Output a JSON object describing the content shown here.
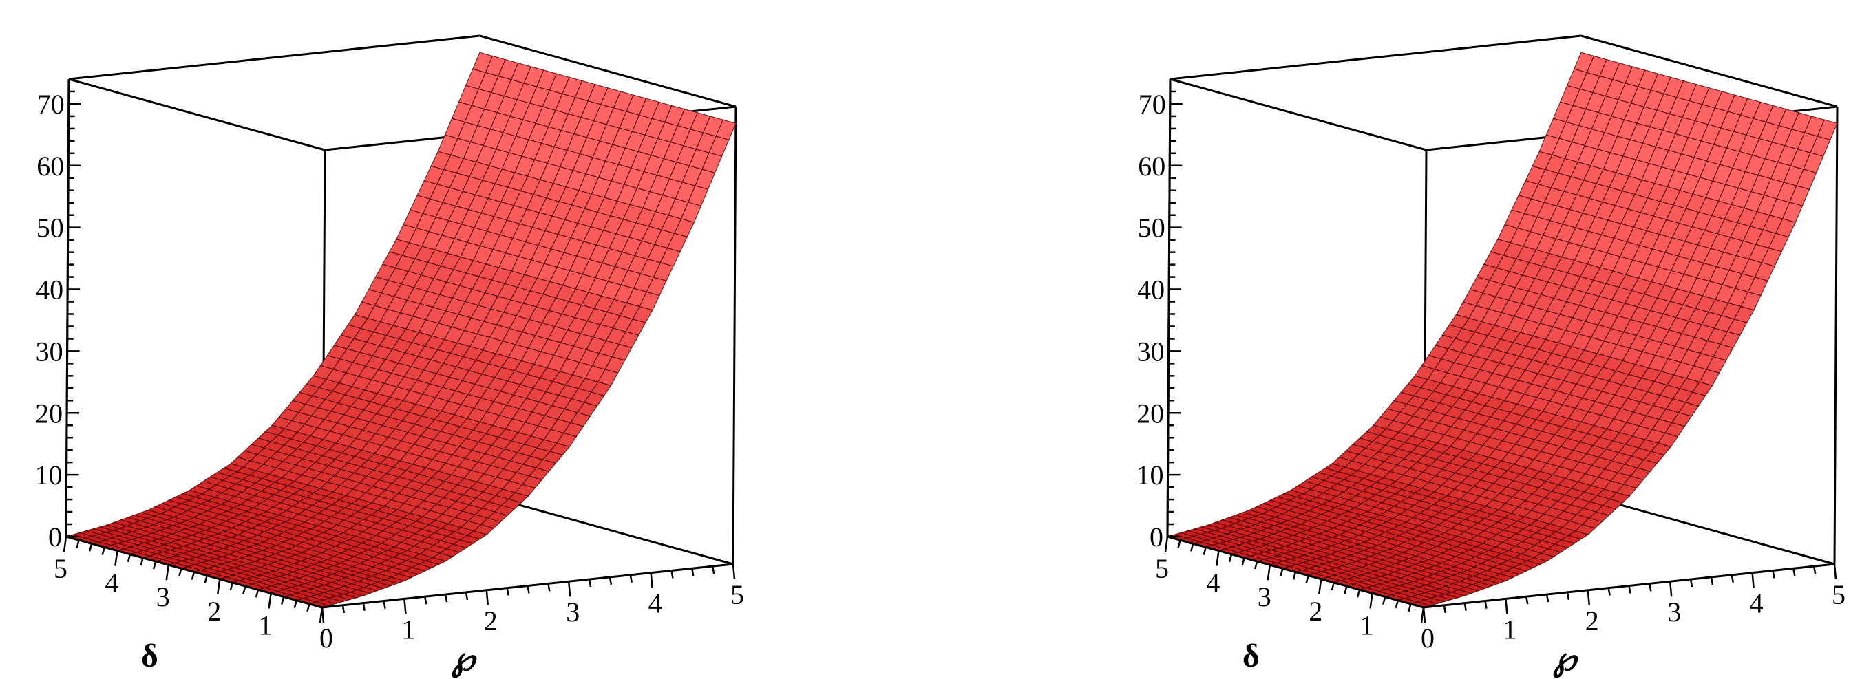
{
  "chart_data": [
    {
      "type": "surface",
      "x_axis": {
        "label": "℘",
        "range": [
          0,
          5
        ],
        "ticks": [
          0,
          1,
          2,
          3,
          4,
          5
        ]
      },
      "y_axis": {
        "label": "δ",
        "range": [
          0,
          5
        ],
        "ticks": [
          1,
          2,
          3,
          4,
          5
        ]
      },
      "z_axis": {
        "label": "",
        "range": [
          0,
          74
        ],
        "ticks": [
          0,
          10,
          20,
          30,
          40,
          50,
          60,
          70
        ]
      },
      "surface": {
        "description": "z depends only on ℘ (constant along δ); rises exponentially",
        "x": [
          0,
          0.5,
          1,
          1.5,
          2,
          2.5,
          3,
          3.5,
          4,
          4.5,
          5
        ],
        "z": [
          0,
          1.2,
          2.9,
          5.4,
          9,
          14.5,
          21.8,
          31,
          42.5,
          56,
          71.3
        ]
      },
      "colors": {
        "surface": "#ff2a2a",
        "mesh": "#4a0000",
        "box": "#000000"
      },
      "grid": false,
      "box": true
    },
    {
      "type": "surface",
      "x_axis": {
        "label": "℘",
        "range": [
          0,
          5
        ],
        "ticks": [
          0,
          1,
          2,
          3,
          4,
          5
        ]
      },
      "y_axis": {
        "label": "δ",
        "range": [
          0,
          5
        ],
        "ticks": [
          1,
          2,
          3,
          4,
          5
        ]
      },
      "z_axis": {
        "label": "",
        "range": [
          0,
          74
        ],
        "ticks": [
          0,
          10,
          20,
          30,
          40,
          50,
          60,
          70
        ]
      },
      "surface": {
        "description": "z depends only on ℘ (constant along δ); rises exponentially",
        "x": [
          0,
          0.5,
          1,
          1.5,
          2,
          2.5,
          3,
          3.5,
          4,
          4.5,
          5
        ],
        "z": [
          0,
          1.2,
          2.9,
          5.4,
          9,
          14.5,
          21.8,
          31,
          42.5,
          56,
          71.3
        ]
      },
      "colors": {
        "surface": "#ff2a2a",
        "mesh": "#4a0000",
        "box": "#000000"
      },
      "grid": false,
      "box": true
    }
  ]
}
